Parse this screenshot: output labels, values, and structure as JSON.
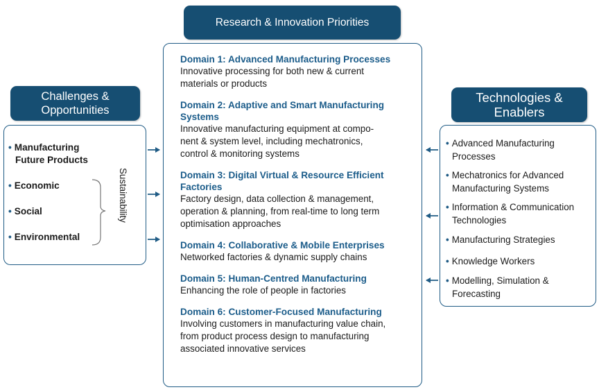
{
  "center": {
    "title": "Research & Innovation Priorities",
    "domains": [
      {
        "title": "Domain 1: Advanced Manufacturing Processes",
        "desc": [
          "Innovative processing for both new & current",
          "materials or products"
        ]
      },
      {
        "title": "Domain 2: Adaptive and Smart Manufacturing",
        "title2": "Systems",
        "desc": [
          "Innovative manufacturing equipment at compo-",
          "nent & system level, including mechatronics,",
          "control & monitoring systems"
        ]
      },
      {
        "title": "Domain 3: Digital Virtual & Resource Efficient",
        "title2": "Factories",
        "desc": [
          "Factory design, data collection & management,",
          "operation & planning, from real-time to long term",
          "optimisation approaches"
        ]
      },
      {
        "title": "Domain 4: Collaborative & Mobile Enterprises",
        "desc": [
          "Networked factories & dynamic supply chains"
        ]
      },
      {
        "title": "Domain 5: Human-Centred Manufacturing",
        "desc": [
          "Enhancing the role of people in factories"
        ]
      },
      {
        "title": "Domain 6: Customer-Focused Manufacturing",
        "desc": [
          "Involving customers in manufacturing value chain,",
          "from product process design to manufacturing",
          "associated innovative services"
        ]
      }
    ]
  },
  "left": {
    "title_line1": "Challenges &",
    "title_line2": "Opportunities",
    "items": [
      {
        "line1": "Manufacturing",
        "line2": "Future Products"
      },
      {
        "line1": "Economic"
      },
      {
        "line1": "Social"
      },
      {
        "line1": "Environmental"
      }
    ],
    "bracket_label": "Sustainability"
  },
  "right": {
    "title_line1": "Technologies &",
    "title_line2": "Enablers",
    "items": [
      {
        "line1": "Advanced Manufacturing",
        "line2": "Processes"
      },
      {
        "line1": "Mechatronics for Advanced",
        "line2": "Manufacturing Systems"
      },
      {
        "line1": "Information & Communication",
        "line2": "Technologies"
      },
      {
        "line1": "Manufacturing Strategies"
      },
      {
        "line1": "Knowledge Workers"
      },
      {
        "line1": "Modelling, Simulation &",
        "line2": "Forecasting"
      }
    ]
  },
  "colors": {
    "header_bg": "#164e72",
    "accent": "#1b5c8a",
    "arrow": "#1f5b85"
  }
}
